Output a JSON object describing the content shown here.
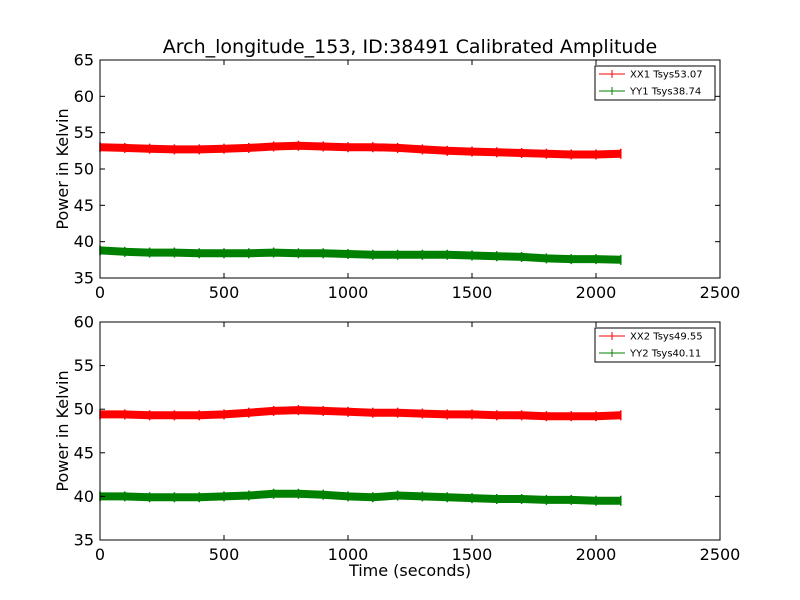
{
  "chart_data": [
    {
      "type": "line",
      "title": "Arch_longitude_153, ID:38491 Calibrated Amplitude",
      "xlabel": "",
      "ylabel": "Power in Kelvin",
      "xlim": [
        0,
        2500
      ],
      "ylim": [
        35,
        65
      ],
      "x_ticks": [
        0,
        500,
        1000,
        1500,
        2000,
        2500
      ],
      "y_ticks": [
        35,
        40,
        45,
        50,
        55,
        60,
        65
      ],
      "x_tick_labels": [
        "0",
        "500",
        "1000",
        "1500",
        "2000",
        "2500"
      ],
      "y_tick_labels": [
        "35",
        "40",
        "45",
        "50",
        "55",
        "60",
        "65"
      ],
      "grid": false,
      "legend_position": "top-right",
      "series": [
        {
          "name": "XX1 Tsys53.07",
          "color": "#ff0000",
          "x": [
            0,
            100,
            200,
            300,
            400,
            500,
            600,
            700,
            800,
            900,
            1000,
            1100,
            1200,
            1300,
            1400,
            1500,
            1600,
            1700,
            1800,
            1900,
            2000,
            2100
          ],
          "y": [
            53.0,
            52.9,
            52.8,
            52.7,
            52.7,
            52.8,
            52.9,
            53.1,
            53.2,
            53.1,
            53.0,
            53.0,
            52.9,
            52.7,
            52.5,
            52.4,
            52.3,
            52.2,
            52.1,
            52.0,
            52.0,
            52.1
          ]
        },
        {
          "name": "YY1 Tsys38.74",
          "color": "#008000",
          "x": [
            0,
            100,
            200,
            300,
            400,
            500,
            600,
            700,
            800,
            900,
            1000,
            1100,
            1200,
            1300,
            1400,
            1500,
            1600,
            1700,
            1800,
            1900,
            2000,
            2100
          ],
          "y": [
            38.8,
            38.6,
            38.5,
            38.5,
            38.4,
            38.4,
            38.4,
            38.5,
            38.4,
            38.4,
            38.3,
            38.2,
            38.2,
            38.2,
            38.2,
            38.1,
            38.0,
            37.9,
            37.7,
            37.6,
            37.6,
            37.5
          ]
        }
      ]
    },
    {
      "type": "line",
      "title": "",
      "xlabel": "Time (seconds)",
      "ylabel": "Power in Kelvin",
      "xlim": [
        0,
        2500
      ],
      "ylim": [
        35,
        60
      ],
      "x_ticks": [
        0,
        500,
        1000,
        1500,
        2000,
        2500
      ],
      "y_ticks": [
        35,
        40,
        45,
        50,
        55,
        60
      ],
      "x_tick_labels": [
        "0",
        "500",
        "1000",
        "1500",
        "2000",
        "2500"
      ],
      "y_tick_labels": [
        "35",
        "40",
        "45",
        "50",
        "55",
        "60"
      ],
      "grid": false,
      "legend_position": "top-right",
      "series": [
        {
          "name": "XX2 Tsys49.55",
          "color": "#ff0000",
          "x": [
            0,
            100,
            200,
            300,
            400,
            500,
            600,
            700,
            800,
            900,
            1000,
            1100,
            1200,
            1300,
            1400,
            1500,
            1600,
            1700,
            1800,
            1900,
            2000,
            2100
          ],
          "y": [
            49.4,
            49.4,
            49.3,
            49.3,
            49.3,
            49.4,
            49.6,
            49.8,
            49.9,
            49.8,
            49.7,
            49.6,
            49.6,
            49.5,
            49.4,
            49.4,
            49.3,
            49.3,
            49.2,
            49.2,
            49.2,
            49.3
          ]
        },
        {
          "name": "YY2 Tsys40.11",
          "color": "#008000",
          "x": [
            0,
            100,
            200,
            300,
            400,
            500,
            600,
            700,
            800,
            900,
            1000,
            1100,
            1200,
            1300,
            1400,
            1500,
            1600,
            1700,
            1800,
            1900,
            2000,
            2100
          ],
          "y": [
            40.0,
            40.0,
            39.9,
            39.9,
            39.9,
            40.0,
            40.1,
            40.3,
            40.3,
            40.2,
            40.0,
            39.9,
            40.1,
            40.0,
            39.9,
            39.8,
            39.7,
            39.7,
            39.6,
            39.6,
            39.5,
            39.5
          ]
        }
      ]
    }
  ]
}
